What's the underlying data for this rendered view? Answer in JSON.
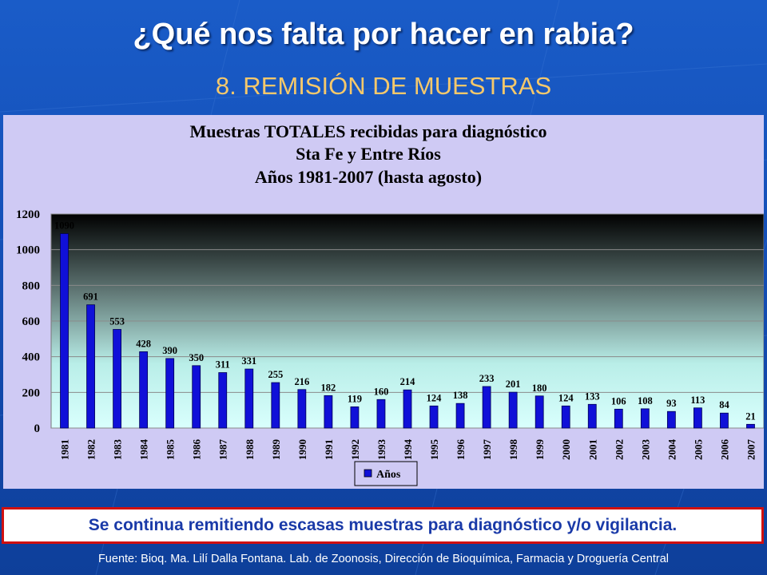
{
  "slide": {
    "title": "¿Qué nos falta por hacer en rabia?",
    "subtitle": "8. REMISIÓN  DE MUESTRAS",
    "note": "Se continua remitiendo escasas muestras para diagnóstico y/o vigilancia.",
    "source": "Fuente: Bioq. Ma. Lilí Dalla Fontana. Lab. de Zoonosis, Dirección de Bioquímica, Farmacia y Droguería Central"
  },
  "chart_data": {
    "type": "bar",
    "title_lines": [
      "Muestras TOTALES  recibidas para diagnóstico",
      "Sta Fe y Entre Ríos",
      "Años 1981-2007 (hasta agosto)"
    ],
    "categories": [
      "1981",
      "1982",
      "1983",
      "1984",
      "1985",
      "1986",
      "1987",
      "1988",
      "1989",
      "1990",
      "1991",
      "1992",
      "1993",
      "1994",
      "1995",
      "1996",
      "1997",
      "1998",
      "1999",
      "2000",
      "2001",
      "2002",
      "2003",
      "2004",
      "2005",
      "2006",
      "2007"
    ],
    "series": [
      {
        "name": "Años",
        "color": "#1010d8",
        "values": [
          1090,
          691,
          553,
          428,
          390,
          350,
          311,
          331,
          255,
          216,
          182,
          119,
          160,
          214,
          124,
          138,
          233,
          201,
          180,
          124,
          133,
          106,
          108,
          93,
          113,
          84,
          21
        ]
      }
    ],
    "ylim": [
      0,
      1200
    ],
    "yticks": [
      0,
      200,
      400,
      600,
      800,
      1000,
      1200
    ],
    "grid": true,
    "legend": "bottom-center",
    "xlabel": "",
    "ylabel": ""
  }
}
